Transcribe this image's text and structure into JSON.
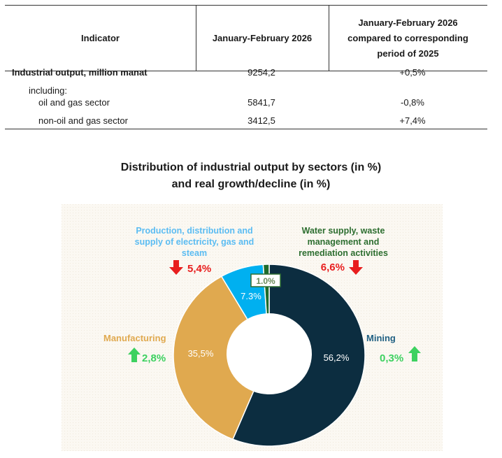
{
  "table": {
    "headers": [
      "Indicator",
      "January-February 2026",
      "January-February 2026 compared to corresponding period of 2025"
    ],
    "header3_lines": [
      "January-February 2026",
      "compared to corresponding",
      "period of 2025"
    ],
    "rows": [
      {
        "label": "Industrial output, million manat",
        "value": "9254,2",
        "change": "+0,5%"
      },
      {
        "label": "including:"
      },
      {
        "label": "oil and gas sector",
        "value": "5841,7",
        "change": "-0,8%"
      },
      {
        "label": "non-oil and gas sector",
        "value": "3412,5",
        "change": "+7,4%"
      }
    ]
  },
  "chart_data": {
    "type": "pie",
    "title": "Distribution of industrial output by sectors (in %) and real growth/decline (in %)",
    "title_lines": [
      "Distribution of industrial output by sectors (in %)",
      "and real growth/decline (in %)"
    ],
    "donut": true,
    "slices": [
      {
        "name": "Mining",
        "share": 56.2,
        "share_label": "56,2%",
        "growth": 0.3,
        "growth_label": "0,3%",
        "direction": "up",
        "color": "#0c2d40",
        "label_color": "#1f5f82"
      },
      {
        "name": "Manufacturing",
        "share": 35.5,
        "share_label": "35,5%",
        "growth": 2.8,
        "growth_label": "2,8%",
        "direction": "up",
        "color": "#e0a94f",
        "label_color": "#e0a94f"
      },
      {
        "name": "Production, distribution and supply of electricity, gas and steam",
        "name_lines": [
          "Production, distribution and",
          "supply of electricity, gas and",
          "steam"
        ],
        "share": 7.3,
        "share_label": "7.3%",
        "growth": -5.4,
        "growth_label": "5,4%",
        "direction": "down",
        "color": "#00b0f0",
        "label_color": "#5bbcf2"
      },
      {
        "name": "Water supply, waste management and remediation activities",
        "name_lines": [
          "Water supply, waste",
          "management and",
          "remediation activities"
        ],
        "share": 1.0,
        "share_label": "1.0%",
        "growth": -6.6,
        "growth_label": "6,6%",
        "direction": "down",
        "color": "#1e6b2a",
        "label_color": "#2d6e30"
      }
    ],
    "up_color": "#3dd160",
    "down_color": "#e81e1e"
  }
}
